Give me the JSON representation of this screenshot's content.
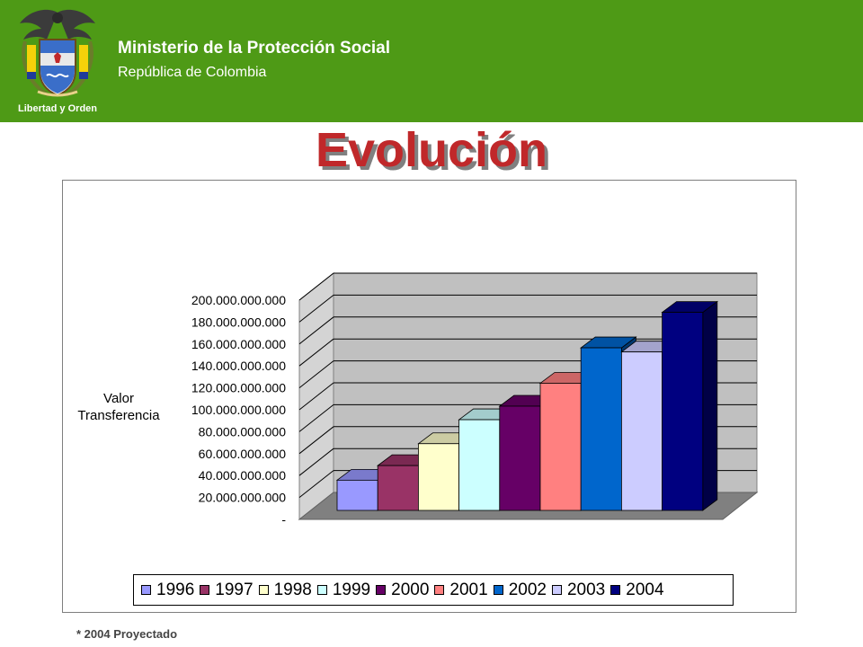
{
  "header": {
    "org_name": "Ministerio de la Protección Social",
    "org_sub": "República de Colombia",
    "seal_motto": "Libertad y Orden",
    "color": "#4e9a16"
  },
  "title": "Evolución",
  "footnote": "* 2004 Proyectado",
  "chart_data": {
    "type": "bar",
    "subtype": "3d-clustered",
    "ylabel_lines": [
      "Valor",
      "Transferencia"
    ],
    "ylim": [
      0,
      200000000000
    ],
    "yticks": [
      "-",
      "20.000.000.000",
      "40.000.000.000",
      "60.000.000.000",
      "80.000.000.000",
      "100.000.000.000",
      "120.000.000.000",
      "140.000.000.000",
      "160.000.000.000",
      "180.000.000.000",
      "200.000.000.000"
    ],
    "grid": true,
    "legend_position": "bottom",
    "series": [
      {
        "name": "1996",
        "value": 29000000000,
        "color": "#9999ff"
      },
      {
        "name": "1997",
        "value": 43000000000,
        "color": "#993366"
      },
      {
        "name": "1998",
        "value": 64000000000,
        "color": "#ffffcc"
      },
      {
        "name": "1999",
        "value": 87000000000,
        "color": "#ccffff"
      },
      {
        "name": "2000",
        "value": 100000000000,
        "color": "#660066"
      },
      {
        "name": "2001",
        "value": 122000000000,
        "color": "#ff8080"
      },
      {
        "name": "2002",
        "value": 156000000000,
        "color": "#0066cc"
      },
      {
        "name": "2003",
        "value": 152000000000,
        "color": "#ccccff"
      },
      {
        "name": "2004",
        "value": 190000000000,
        "color": "#000080"
      }
    ]
  }
}
